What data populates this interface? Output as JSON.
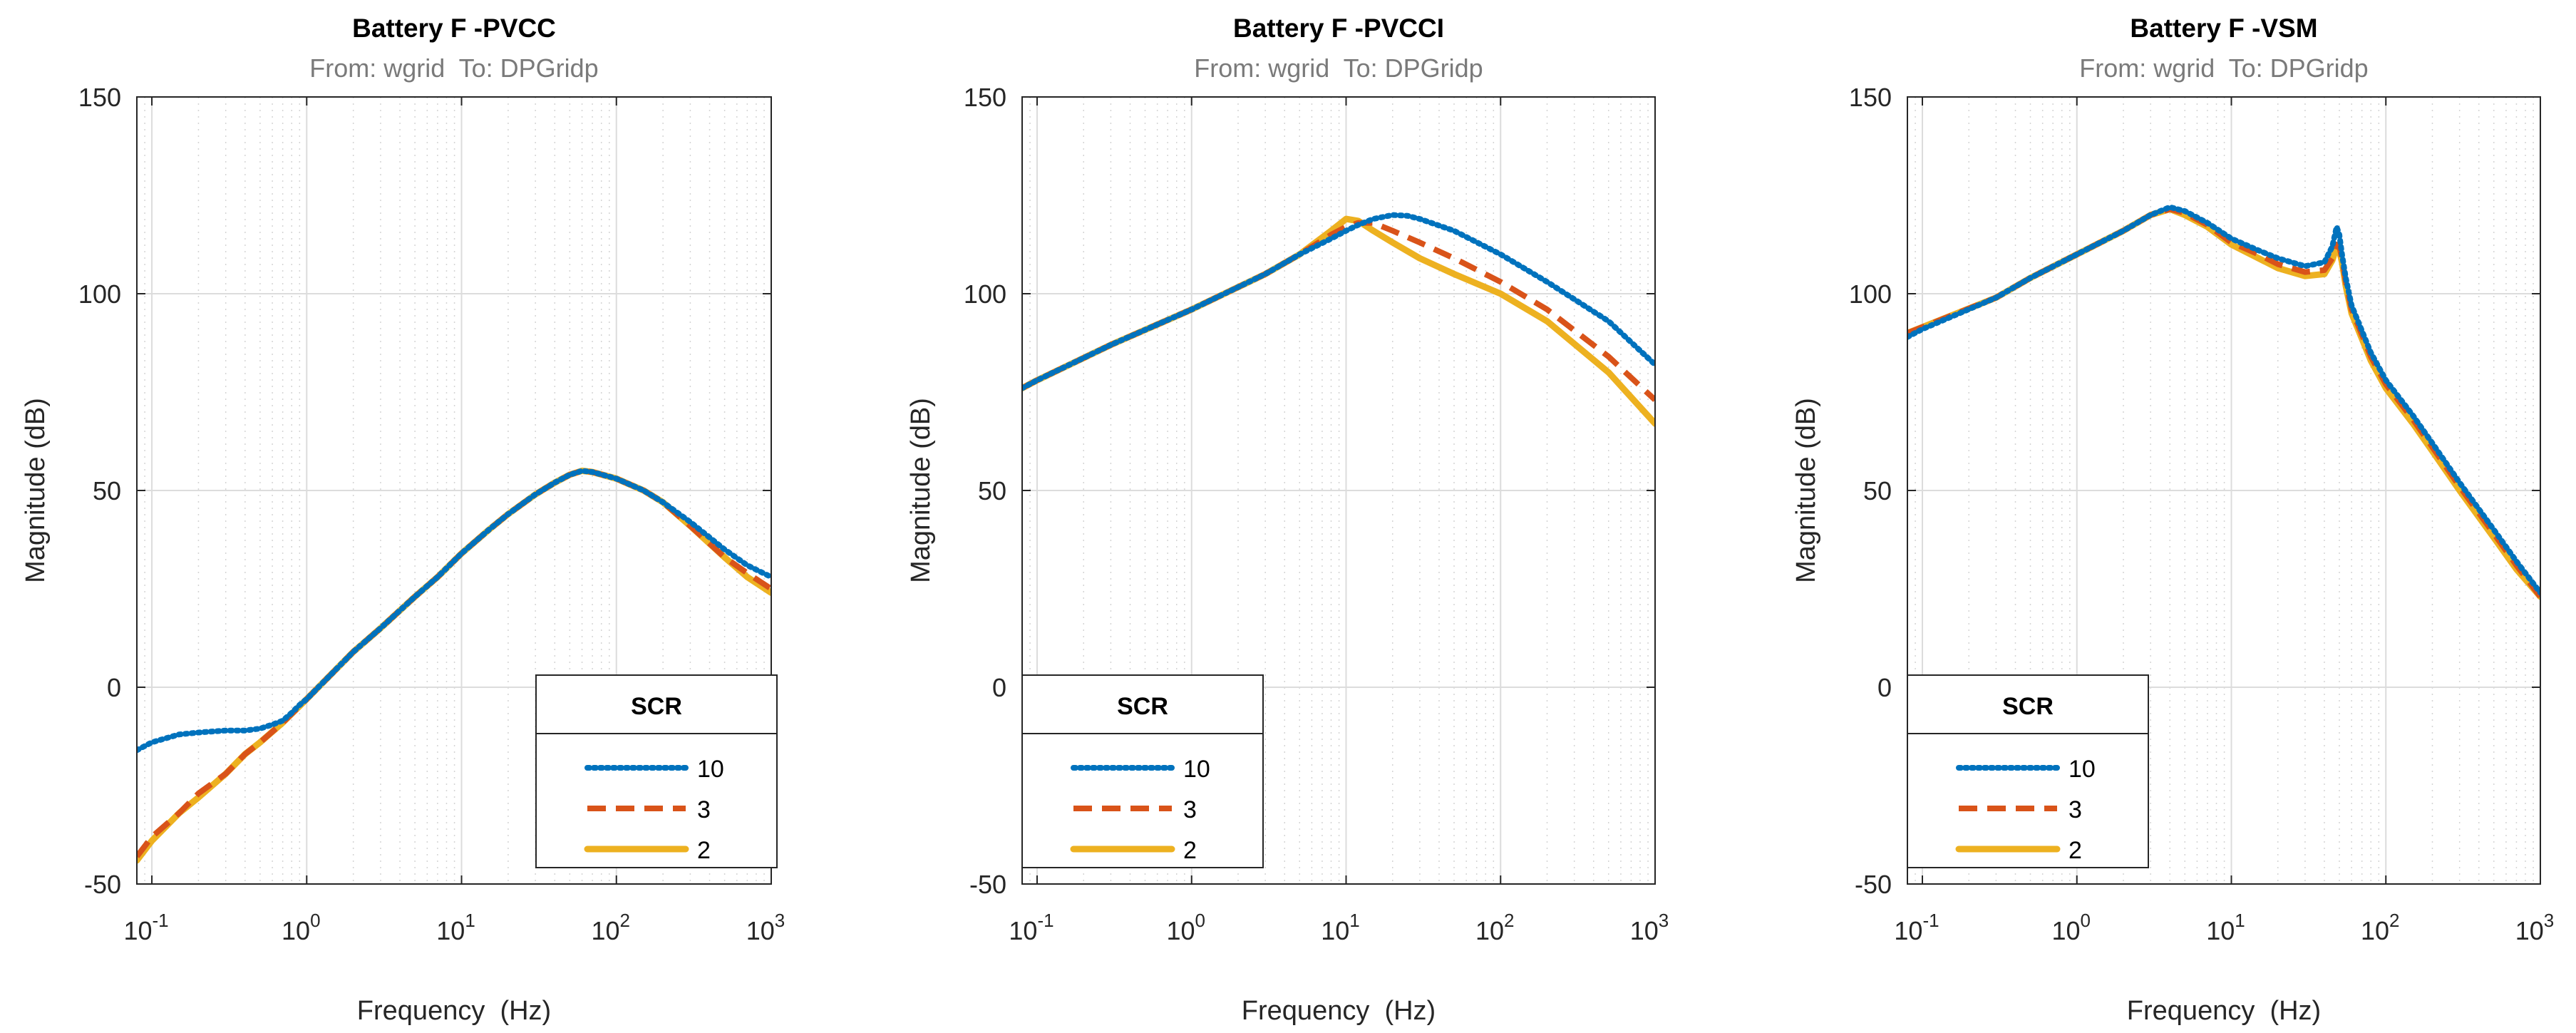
{
  "figure": {
    "background": "#ffffff"
  },
  "chart_data": [
    {
      "type": "line",
      "title": "Battery F -PVCC",
      "subtitle": "From: wgrid  To: DPGridp",
      "xlabel": "Frequency  (Hz)",
      "ylabel": "Magnitude (dB)",
      "xscale": "log",
      "xlim": [
        0.08,
        1000
      ],
      "ylim": [
        -50,
        150
      ],
      "yticks": [
        "-50",
        "0",
        "50",
        "100",
        "150"
      ],
      "xticks": [
        {
          "base": "10",
          "exp": "-1"
        },
        {
          "base": "10",
          "exp": "0"
        },
        {
          "base": "10",
          "exp": "1"
        },
        {
          "base": "10",
          "exp": "2"
        },
        {
          "base": "10",
          "exp": "3"
        }
      ],
      "grid": true,
      "legend": {
        "title": "SCR",
        "location": "bottom-right"
      },
      "series": [
        {
          "name": "10",
          "style": "dotted",
          "color": "#0072bd",
          "x": [
            0.08,
            0.1,
            0.15,
            0.2,
            0.3,
            0.4,
            0.5,
            0.6,
            0.7,
            0.8,
            0.9,
            1,
            1.5,
            2,
            3,
            5,
            7,
            10,
            15,
            20,
            30,
            40,
            50,
            60,
            70,
            100,
            150,
            200,
            300,
            500,
            700,
            1000
          ],
          "y": [
            -16,
            -14,
            -12,
            -11.5,
            -11,
            -11,
            -10.5,
            -9.5,
            -8.5,
            -6.5,
            -4.5,
            -3,
            4,
            9,
            15,
            23,
            28,
            34,
            40,
            44,
            49,
            52,
            54,
            55,
            54.7,
            53,
            50,
            47,
            42,
            35,
            31,
            28
          ]
        },
        {
          "name": "3",
          "style": "dashed",
          "color": "#d95319",
          "x": [
            0.08,
            0.1,
            0.15,
            0.2,
            0.3,
            0.4,
            0.5,
            0.7,
            1,
            1.5,
            2,
            3,
            5,
            7,
            10,
            15,
            20,
            30,
            40,
            50,
            60,
            70,
            100,
            150,
            200,
            300,
            500,
            700,
            1000
          ],
          "y": [
            -43,
            -38,
            -32,
            -27,
            -22,
            -17,
            -14,
            -9,
            -3,
            4,
            9,
            15,
            23,
            28,
            34,
            40,
            44,
            49,
            52,
            54,
            55,
            54.7,
            53,
            50,
            47,
            41,
            33,
            29,
            25
          ]
        },
        {
          "name": "2",
          "style": "solid",
          "color": "#edb120",
          "x": [
            0.08,
            0.1,
            0.15,
            0.2,
            0.3,
            0.4,
            0.5,
            0.7,
            1,
            1.5,
            2,
            3,
            5,
            7,
            10,
            15,
            20,
            30,
            40,
            50,
            60,
            70,
            100,
            150,
            200,
            300,
            500,
            700,
            1000
          ],
          "y": [
            -44,
            -39,
            -32,
            -28,
            -22,
            -17,
            -14,
            -9,
            -3,
            4,
            9,
            15,
            23,
            28,
            34,
            40,
            44,
            49,
            52,
            54,
            55,
            54.7,
            53,
            50,
            47,
            41,
            33,
            28,
            24
          ]
        }
      ]
    },
    {
      "type": "line",
      "title": "Battery F -PVCCI",
      "subtitle": "From: wgrid  To: DPGridp",
      "xlabel": "Frequency  (Hz)",
      "ylabel": "Magnitude (dB)",
      "xscale": "log",
      "xlim": [
        0.08,
        1000
      ],
      "ylim": [
        -50,
        150
      ],
      "yticks": [
        "-50",
        "0",
        "50",
        "100",
        "150"
      ],
      "xticks": [
        {
          "base": "10",
          "exp": "-1"
        },
        {
          "base": "10",
          "exp": "0"
        },
        {
          "base": "10",
          "exp": "1"
        },
        {
          "base": "10",
          "exp": "2"
        },
        {
          "base": "10",
          "exp": "3"
        }
      ],
      "grid": true,
      "legend": {
        "title": "SCR",
        "location": "bottom-left"
      },
      "series": [
        {
          "name": "10",
          "style": "dotted",
          "color": "#0072bd",
          "x": [
            0.08,
            0.1,
            0.3,
            1,
            3,
            5,
            8,
            10,
            12,
            15,
            20,
            25,
            30,
            50,
            100,
            200,
            500,
            1000
          ],
          "y": [
            76,
            78,
            87,
            96,
            105,
            110,
            114,
            116,
            117.5,
            119,
            120,
            119.8,
            119,
            116,
            110,
            103,
            93,
            82
          ]
        },
        {
          "name": "3",
          "style": "dashed",
          "color": "#d95319",
          "x": [
            0.08,
            0.1,
            0.3,
            1,
            3,
            5,
            8,
            10,
            12,
            15,
            20,
            30,
            50,
            100,
            200,
            500,
            1000
          ],
          "y": [
            76,
            78,
            87,
            96,
            105,
            110,
            115,
            117,
            118,
            118,
            116,
            113,
            109,
            103,
            96,
            84,
            73
          ]
        },
        {
          "name": "2",
          "style": "solid",
          "color": "#edb120",
          "x": [
            0.08,
            0.1,
            0.3,
            1,
            3,
            5,
            8,
            10,
            12,
            15,
            20,
            30,
            50,
            100,
            200,
            500,
            1000
          ],
          "y": [
            76,
            78,
            87,
            96,
            105,
            110,
            116,
            119,
            118.5,
            116,
            113,
            109,
            105,
            100,
            93,
            80,
            67
          ]
        }
      ]
    },
    {
      "type": "line",
      "title": "Battery F -VSM",
      "subtitle": "From: wgrid  To: DPGridp",
      "xlabel": "Frequency  (Hz)",
      "ylabel": "Magnitude (dB)",
      "xscale": "log",
      "xlim": [
        0.08,
        1000
      ],
      "ylim": [
        -50,
        150
      ],
      "yticks": [
        "-50",
        "0",
        "50",
        "100",
        "150"
      ],
      "xticks": [
        {
          "base": "10",
          "exp": "-1"
        },
        {
          "base": "10",
          "exp": "0"
        },
        {
          "base": "10",
          "exp": "1"
        },
        {
          "base": "10",
          "exp": "2"
        },
        {
          "base": "10",
          "exp": "3"
        }
      ],
      "grid": true,
      "legend": {
        "title": "SCR",
        "location": "bottom-left"
      },
      "series": [
        {
          "name": "10",
          "style": "dotted",
          "color": "#0072bd",
          "x": [
            0.08,
            0.1,
            0.3,
            0.5,
            1,
            2,
            3,
            4,
            5,
            7,
            10,
            15,
            20,
            30,
            40,
            45,
            48,
            50,
            52,
            55,
            60,
            80,
            100,
            150,
            200,
            300,
            500,
            700,
            1000
          ],
          "y": [
            89,
            91,
            99,
            104,
            110,
            116,
            120,
            122,
            121,
            118,
            114,
            111,
            109,
            107,
            108,
            112,
            117,
            115,
            110,
            104,
            97,
            85,
            78,
            69,
            62,
            52,
            40,
            32,
            24
          ]
        },
        {
          "name": "3",
          "style": "dashed",
          "color": "#d95319",
          "x": [
            0.08,
            0.1,
            0.3,
            0.5,
            1,
            2,
            3,
            4,
            5,
            7,
            10,
            15,
            20,
            30,
            40,
            45,
            48,
            50,
            52,
            55,
            60,
            80,
            100,
            150,
            200,
            300,
            500,
            700,
            1000
          ],
          "y": [
            90,
            91.5,
            99,
            104,
            110,
            116,
            120,
            121.5,
            120.5,
            117.5,
            113,
            110,
            107.5,
            105.5,
            106,
            109,
            112.5,
            112,
            109,
            103,
            96,
            84,
            77,
            68,
            61,
            51,
            39,
            31,
            23
          ]
        },
        {
          "name": "2",
          "style": "solid",
          "color": "#edb120",
          "x": [
            0.08,
            0.1,
            0.3,
            0.5,
            1,
            2,
            3,
            4,
            5,
            7,
            10,
            15,
            20,
            30,
            40,
            45,
            48,
            50,
            52,
            55,
            60,
            80,
            100,
            150,
            200,
            300,
            500,
            700,
            1000
          ],
          "y": [
            90,
            91.5,
            99,
            104,
            110,
            116,
            120,
            121.5,
            120,
            117,
            112.5,
            109,
            106.5,
            104.5,
            105,
            108.5,
            112,
            111,
            108,
            102,
            95,
            83,
            76,
            67,
            60,
            50,
            38,
            30,
            23
          ]
        }
      ]
    }
  ]
}
